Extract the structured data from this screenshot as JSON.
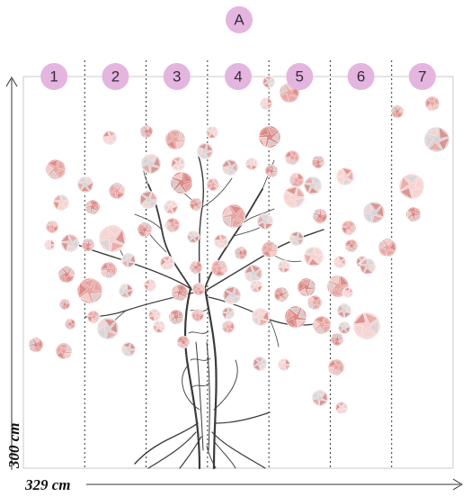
{
  "header": {
    "label": "A"
  },
  "panels": [
    "1",
    "2",
    "3",
    "4",
    "5",
    "6",
    "7"
  ],
  "dimensions": {
    "height_label": "300 cm",
    "width_label": "329 cm"
  },
  "colors": {
    "badge_fill": "#e4b5df",
    "badge_text": "#3a2a3a",
    "divider": "#333333",
    "axis": "#333333",
    "bubble_pink": "#e8a7a4",
    "bubble_rose": "#d98a86",
    "bubble_light": "#f4d4d2",
    "bubble_grey": "#d9d4d6",
    "tree": "#3a3a3a"
  },
  "artwork": {
    "subject": "tree-with-faceted-bubbles"
  }
}
